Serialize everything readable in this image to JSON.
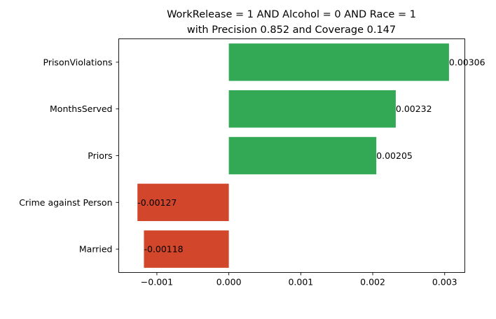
{
  "chart_data": {
    "type": "bar",
    "orientation": "horizontal",
    "title_line1": "WorkRelease = 1 AND Alcohol = 0 AND Race = 1",
    "title_line2": "with Precision 0.852 and Coverage 0.147",
    "categories": [
      "PrisonViolations",
      "MonthsServed",
      "Priors",
      "Crime against Person",
      "Married"
    ],
    "values": [
      0.00306,
      0.00232,
      0.00205,
      -0.00127,
      -0.00118
    ],
    "value_labels": [
      "0.00306",
      "0.00232",
      "0.00205",
      "-0.00127",
      "-0.00118"
    ],
    "xlim": [
      -0.00153,
      0.00328
    ],
    "xticks": [
      -0.001,
      0.0,
      0.001,
      0.002,
      0.003
    ],
    "xtick_labels": [
      "−0.001",
      "0.000",
      "0.001",
      "0.002",
      "0.003"
    ],
    "xlabel": "",
    "ylabel": "",
    "grid": false,
    "colors": {
      "positive": "#33a955",
      "negative": "#d2462b"
    }
  }
}
